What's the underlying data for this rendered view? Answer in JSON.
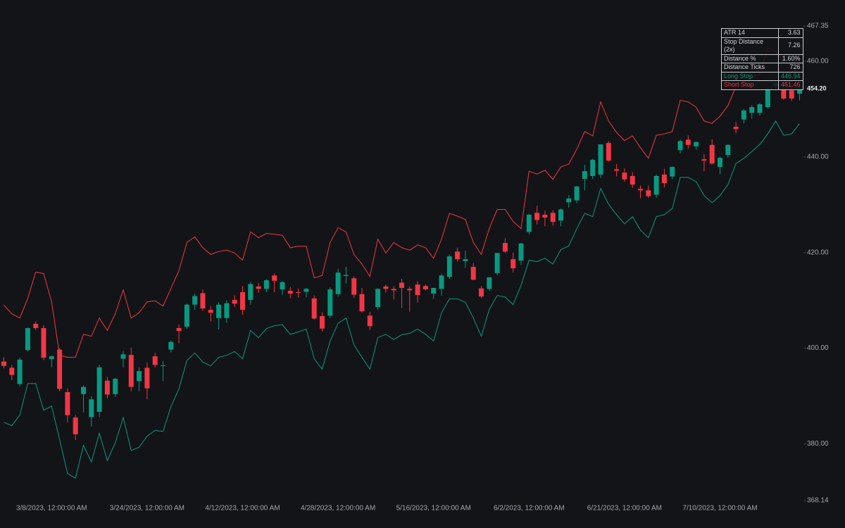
{
  "chart_data": {
    "type": "candlestick",
    "categories": [
      null,
      null,
      null,
      null,
      null,
      null,
      "3/8/2023, 12:00:00 AM",
      null,
      null,
      null,
      null,
      null,
      null,
      null,
      null,
      null,
      null,
      null,
      "3/24/2023, 12:00:00 AM",
      null,
      null,
      null,
      null,
      null,
      null,
      null,
      null,
      null,
      null,
      null,
      "4/12/2023, 12:00:00 AM",
      null,
      null,
      null,
      null,
      null,
      null,
      null,
      null,
      null,
      null,
      null,
      "4/28/2023, 12:00:00 AM",
      null,
      null,
      null,
      null,
      null,
      null,
      null,
      null,
      null,
      null,
      null,
      "5/16/2023, 12:00:00 AM",
      null,
      null,
      null,
      null,
      null,
      null,
      null,
      null,
      null,
      null,
      null,
      "6/2/2023, 12:00:00 AM",
      null,
      null,
      null,
      null,
      null,
      null,
      null,
      null,
      null,
      null,
      null,
      "6/21/2023, 12:00:00 AM",
      null,
      null,
      null,
      null,
      null,
      null,
      null,
      null,
      null,
      null,
      null,
      "7/10/2023, 12:00:00 AM",
      null,
      null,
      null,
      null,
      null,
      null,
      null,
      null,
      null,
      null
    ],
    "ohlc": {
      "up_color": "#089981",
      "down_color": "#f23645",
      "open": [
        397.2,
        395.9,
        392.5,
        399.6,
        405.1,
        404.2,
        397.7,
        399.7,
        390.8,
        385.5,
        390.4,
        385.6,
        386.7,
        393.2,
        390.4,
        397.8,
        398.6,
        393.1,
        395.9,
        398.3,
        396.3,
        399.7,
        404.2,
        404.5,
        409.1,
        411.5,
        408,
        406.3,
        406.3,
        410.1,
        411.7,
        410.1,
        412.9,
        412.4,
        415.2,
        412.3,
        412,
        411.7,
        411.8,
        410.4,
        406.7,
        406.8,
        411.3,
        415.1,
        414.6,
        411.3,
        406.8,
        408.6,
        412.9,
        412.4,
        413.7,
        412.4,
        413.3,
        413,
        411.4,
        412.4,
        414.9,
        420.2,
        418.2,
        417,
        412.5,
        412.4,
        415.7,
        422,
        418.6,
        418.3,
        424.3,
        428.3,
        427.9,
        428.3,
        426.7,
        430.5,
        430.9,
        435.4,
        436,
        436.3,
        442.9,
        437.4,
        436.7,
        436,
        433.3,
        433,
        432.1,
        436.3,
        435.9,
        441.4,
        443.6,
        442.2,
        439.5,
        442.5,
        437.9,
        440.4,
        446.3,
        447.8,
        449.2,
        449.2,
        450.4,
        454.9,
        454.2,
        453.9,
        453.2
      ],
      "high": [
        398.1,
        396.5,
        398,
        404.3,
        405.6,
        404.8,
        398.4,
        400,
        391.6,
        386,
        392.2,
        390,
        396.5,
        394,
        393.8,
        399.4,
        400.1,
        396,
        397,
        399,
        397.3,
        401.6,
        405,
        409.3,
        411.4,
        412.3,
        408.8,
        409.6,
        410,
        411,
        413,
        413.8,
        413.6,
        414.4,
        415.6,
        414,
        412.8,
        412.5,
        412.6,
        411,
        407.5,
        412.7,
        416.6,
        417,
        415,
        412.6,
        407.6,
        412.5,
        413.3,
        413,
        414.5,
        412.9,
        414,
        413.3,
        412.3,
        415.6,
        419.6,
        421,
        420.4,
        417.8,
        413,
        414.8,
        419.9,
        423,
        420,
        422,
        428.1,
        429.8,
        428.7,
        428.8,
        429.2,
        432,
        433.9,
        438.3,
        439.6,
        442.6,
        443.3,
        438.5,
        437.6,
        436.8,
        434,
        434,
        436.3,
        437.5,
        438,
        443.6,
        444.5,
        443.2,
        440.6,
        443.7,
        440,
        442.6,
        447.3,
        450,
        450.8,
        451.2,
        454.6,
        456.2,
        455.2,
        454.9,
        455
      ],
      "low": [
        395.8,
        393.3,
        392,
        399.3,
        403.8,
        397.5,
        396,
        391,
        384.5,
        380.8,
        386.6,
        383.6,
        385.6,
        389.5,
        389.8,
        396,
        391,
        391,
        389.3,
        396,
        393.1,
        399.1,
        401,
        404,
        408,
        407.8,
        405.6,
        403.9,
        405.3,
        408.6,
        407,
        409.1,
        411.6,
        411.7,
        411.7,
        411.2,
        410.4,
        410.6,
        410.6,
        406,
        403.5,
        406.3,
        410.8,
        413.5,
        410.5,
        407.4,
        403.8,
        408,
        411.6,
        410.2,
        408.4,
        407.6,
        409.5,
        412.1,
        410.3,
        411,
        414.5,
        418.1,
        416.8,
        414.2,
        410.5,
        412,
        415.3,
        419.9,
        415.8,
        417.4,
        423.8,
        425.9,
        425.5,
        425.6,
        425.5,
        429.4,
        430.3,
        433,
        435.4,
        435.6,
        439,
        435.9,
        434.8,
        433.5,
        431.4,
        431.4,
        431.4,
        433.6,
        435.4,
        440.7,
        441.7,
        441.5,
        437,
        438.4,
        436.4,
        439.8,
        444.9,
        447,
        448,
        448.6,
        450.1,
        454.4,
        451.9,
        451.7,
        451.8
      ],
      "close": [
        396.3,
        394.4,
        397.6,
        404.2,
        404.2,
        398,
        398.3,
        391.5,
        386,
        382,
        391.9,
        389.3,
        396,
        390.3,
        393.6,
        398.7,
        391.9,
        395.2,
        391.6,
        396.5,
        396.4,
        401.3,
        403.6,
        409.1,
        410.9,
        408.3,
        407.4,
        409.1,
        409.4,
        409.3,
        408,
        413.4,
        412.4,
        414.2,
        414.1,
        413.8,
        411.4,
        411.6,
        412.4,
        406.2,
        404.1,
        412.3,
        415.8,
        415.3,
        411.2,
        407.7,
        404.6,
        412.4,
        412.4,
        412.1,
        412.6,
        412.1,
        411.1,
        412.3,
        412.6,
        415.2,
        419.2,
        418.6,
        418.6,
        414.3,
        410.8,
        414.8,
        419.9,
        420.2,
        416.7,
        421.9,
        427.9,
        426.8,
        427.3,
        426.4,
        429,
        431.3,
        433.8,
        437,
        439.4,
        442.6,
        439.2,
        437.1,
        435.3,
        434.2,
        433,
        431.8,
        436,
        434.5,
        437.9,
        443.3,
        442.5,
        443.1,
        439.2,
        438.6,
        439.8,
        442.5,
        445.8,
        449.7,
        450.4,
        451,
        454.2,
        455.4,
        452.2,
        452.2,
        454.2
      ]
    },
    "lines": [
      {
        "color": "#f23645",
        "values": [
          409.0,
          407.2,
          406.3,
          410.4,
          415.9,
          415.6,
          409.7,
          398.5,
          398.1,
          398.1,
          402.9,
          402.5,
          406.3,
          403.7,
          407.2,
          412.2,
          406.3,
          407.4,
          409.7,
          409.9,
          408.8,
          412.5,
          416.2,
          422.1,
          423.3,
          421.0,
          419.6,
          420.2,
          420.5,
          419.9,
          418.4,
          424.3,
          423.1,
          424.0,
          423.8,
          423.6,
          421.0,
          421.3,
          421.3,
          414.7,
          415.2,
          422.1,
          425.2,
          424.3,
          419.6,
          417.6,
          415.0,
          422.8,
          419.9,
          422.1,
          421.0,
          420.5,
          421.6,
          421.0,
          418.8,
          422.8,
          428.2,
          427.6,
          426.9,
          422.1,
          419.6,
          425.0,
          429.0,
          429.0,
          426.5,
          425.0,
          437.0,
          436.4,
          437.2,
          435.3,
          437.9,
          438.5,
          441.6,
          445.3,
          444.4,
          451.5,
          447.5,
          445.1,
          443.4,
          444.4,
          441.9,
          439.7,
          444.5,
          444.8,
          445.3,
          451.8,
          451.5,
          450.4,
          447.5,
          447.0,
          448.5,
          450.7,
          454.7,
          455.7,
          456.6,
          457.3,
          462.8,
          462.1,
          459.6,
          459.4,
          461.46
        ]
      },
      {
        "color": "#089981",
        "values": [
          384.5,
          383.8,
          386.0,
          392.6,
          392.6,
          387.0,
          387.9,
          380.9,
          373.8,
          372.8,
          379.7,
          376.2,
          382.2,
          376.5,
          380.2,
          385.5,
          378.6,
          379.3,
          381.6,
          382.8,
          382.6,
          387.8,
          391.5,
          397.4,
          399.0,
          397.1,
          396.3,
          398.1,
          398.5,
          399.3,
          397.8,
          403.7,
          402.2,
          404.1,
          404.7,
          404.9,
          402.9,
          403.4,
          404.0,
          397.8,
          395.6,
          401.5,
          405.2,
          406.3,
          400.7,
          398.1,
          395.6,
          402.2,
          402.9,
          401.8,
          402.8,
          403.1,
          404.0,
          402.9,
          401.5,
          407.4,
          410.3,
          410.3,
          409.6,
          406.3,
          402.5,
          408.1,
          411.0,
          410.7,
          409.1,
          413.2,
          418.4,
          418.1,
          418.8,
          417.6,
          420.6,
          421.4,
          425.0,
          428.2,
          427.5,
          433.4,
          430.1,
          427.9,
          426.0,
          427.5,
          424.7,
          423.1,
          427.5,
          427.9,
          429.2,
          435.7,
          435.7,
          434.8,
          431.9,
          430.4,
          431.9,
          434.2,
          438.6,
          439.7,
          441.1,
          442.6,
          444.8,
          447.5,
          444.5,
          444.8,
          446.94
        ]
      }
    ],
    "ylim": [
      368.14,
      467.35
    ],
    "yticks": [
      368.14,
      {
        "value": 380,
        "label": "380.00"
      },
      {
        "value": 400,
        "label": "400.00"
      },
      {
        "value": 420,
        "label": "420.00"
      },
      {
        "value": 440,
        "label": "440.00"
      },
      {
        "value": 460,
        "label": "460.00"
      },
      467.35
    ],
    "last_price": {
      "value": 454.2,
      "label": "454.20"
    },
    "table": {
      "rows": [
        [
          "ATR 14",
          "3.63"
        ],
        [
          "Stop Distance (2x)",
          "7.26"
        ],
        [
          "Distance %",
          "1.60%"
        ],
        [
          "Distance Ticks",
          "726"
        ],
        [
          "Long Stop",
          "446.94"
        ],
        [
          "Short Stop",
          "461.46"
        ]
      ]
    }
  }
}
